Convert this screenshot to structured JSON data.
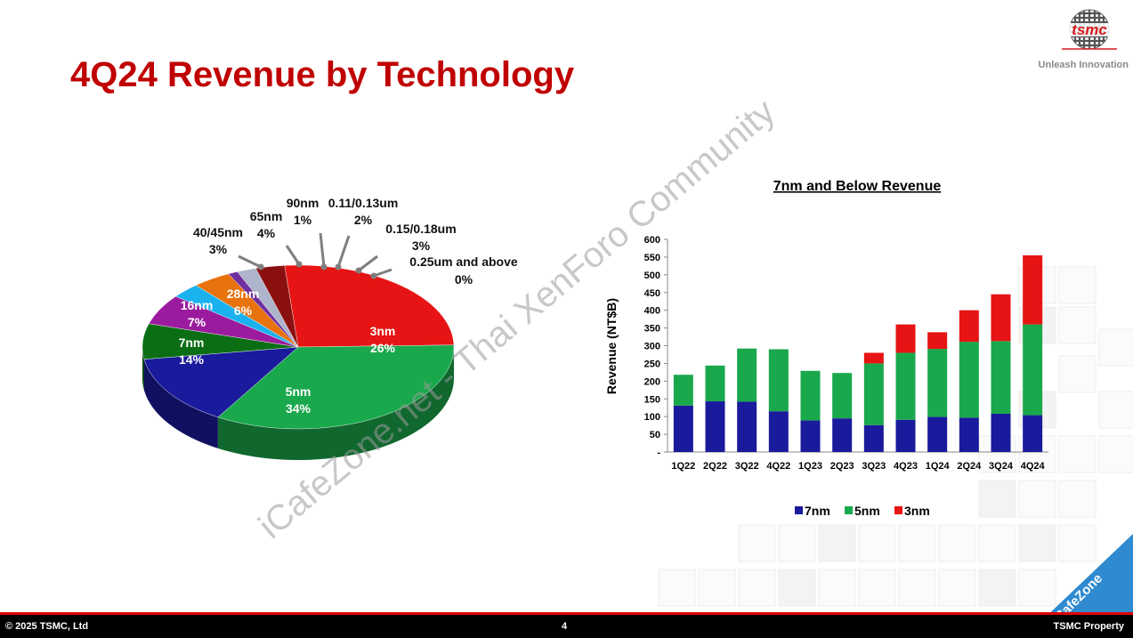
{
  "header": {
    "title": "4Q24 Revenue by Technology",
    "logo_text": "tsmc",
    "tagline": "Unleash Innovation"
  },
  "footer": {
    "copyright": "© 2025 TSMC, Ltd",
    "page_number": "4",
    "property": "TSMC Property"
  },
  "watermark": {
    "text": "iCafeZone.net - Thai XenForo Community",
    "badge": "iCafeZone"
  },
  "colors": {
    "brand_red": "#c00000",
    "3nm": "#e61414",
    "5nm": "#1aa84c",
    "7nm": "#1a1a9c",
    "16nm": "#0b6e14",
    "28nm": "#9b1b9e",
    "40/45nm": "#1ab2ee",
    "65nm": "#e8720c",
    "90nm": "#6f2f9f",
    "0.11/0.13um": "#aeb4cc",
    "0.15/0.18um": "#8a1010",
    "0.25um and above": "#6a0a0a"
  },
  "chart_data": [
    {
      "type": "pie",
      "title": "",
      "slices": [
        {
          "label": "3nm",
          "value": 26,
          "value_label": "26%"
        },
        {
          "label": "5nm",
          "value": 34,
          "value_label": "34%"
        },
        {
          "label": "7nm",
          "value": 14,
          "value_label": "14%"
        },
        {
          "label": "16nm",
          "value": 7,
          "value_label": "7%"
        },
        {
          "label": "28nm",
          "value": 6,
          "value_label": "6%"
        },
        {
          "label": "40/45nm",
          "value": 3,
          "value_label": "3%"
        },
        {
          "label": "65nm",
          "value": 4,
          "value_label": "4%"
        },
        {
          "label": "90nm",
          "value": 1,
          "value_label": "1%"
        },
        {
          "label": "0.11/0.13um",
          "value": 2,
          "value_label": "2%"
        },
        {
          "label": "0.15/0.18um",
          "value": 3,
          "value_label": "3%"
        },
        {
          "label": "0.25um and above",
          "value": 0,
          "value_label": "0%"
        }
      ]
    },
    {
      "type": "bar",
      "stacked": true,
      "title": "7nm and Below Revenue",
      "xlabel": "",
      "ylabel": "Revenue (NT$B)",
      "ylim": [
        0,
        600
      ],
      "yticks": [
        "-",
        "50",
        "100",
        "150",
        "200",
        "250",
        "300",
        "350",
        "400",
        "450",
        "500",
        "550",
        "600"
      ],
      "categories": [
        "1Q22",
        "2Q22",
        "3Q22",
        "4Q22",
        "1Q23",
        "2Q23",
        "3Q23",
        "4Q23",
        "1Q24",
        "2Q24",
        "3Q24",
        "4Q24"
      ],
      "series": [
        {
          "name": "7nm",
          "values": [
            131,
            143,
            142,
            115,
            89,
            95,
            76,
            91,
            99,
            97,
            108,
            104
          ]
        },
        {
          "name": "5nm",
          "values": [
            87,
            101,
            150,
            175,
            140,
            128,
            174,
            189,
            192,
            214,
            205,
            256
          ]
        },
        {
          "name": "3nm",
          "values": [
            0,
            0,
            0,
            0,
            0,
            0,
            30,
            80,
            47,
            89,
            132,
            195
          ]
        }
      ],
      "legend_position": "bottom",
      "grid": false
    }
  ]
}
